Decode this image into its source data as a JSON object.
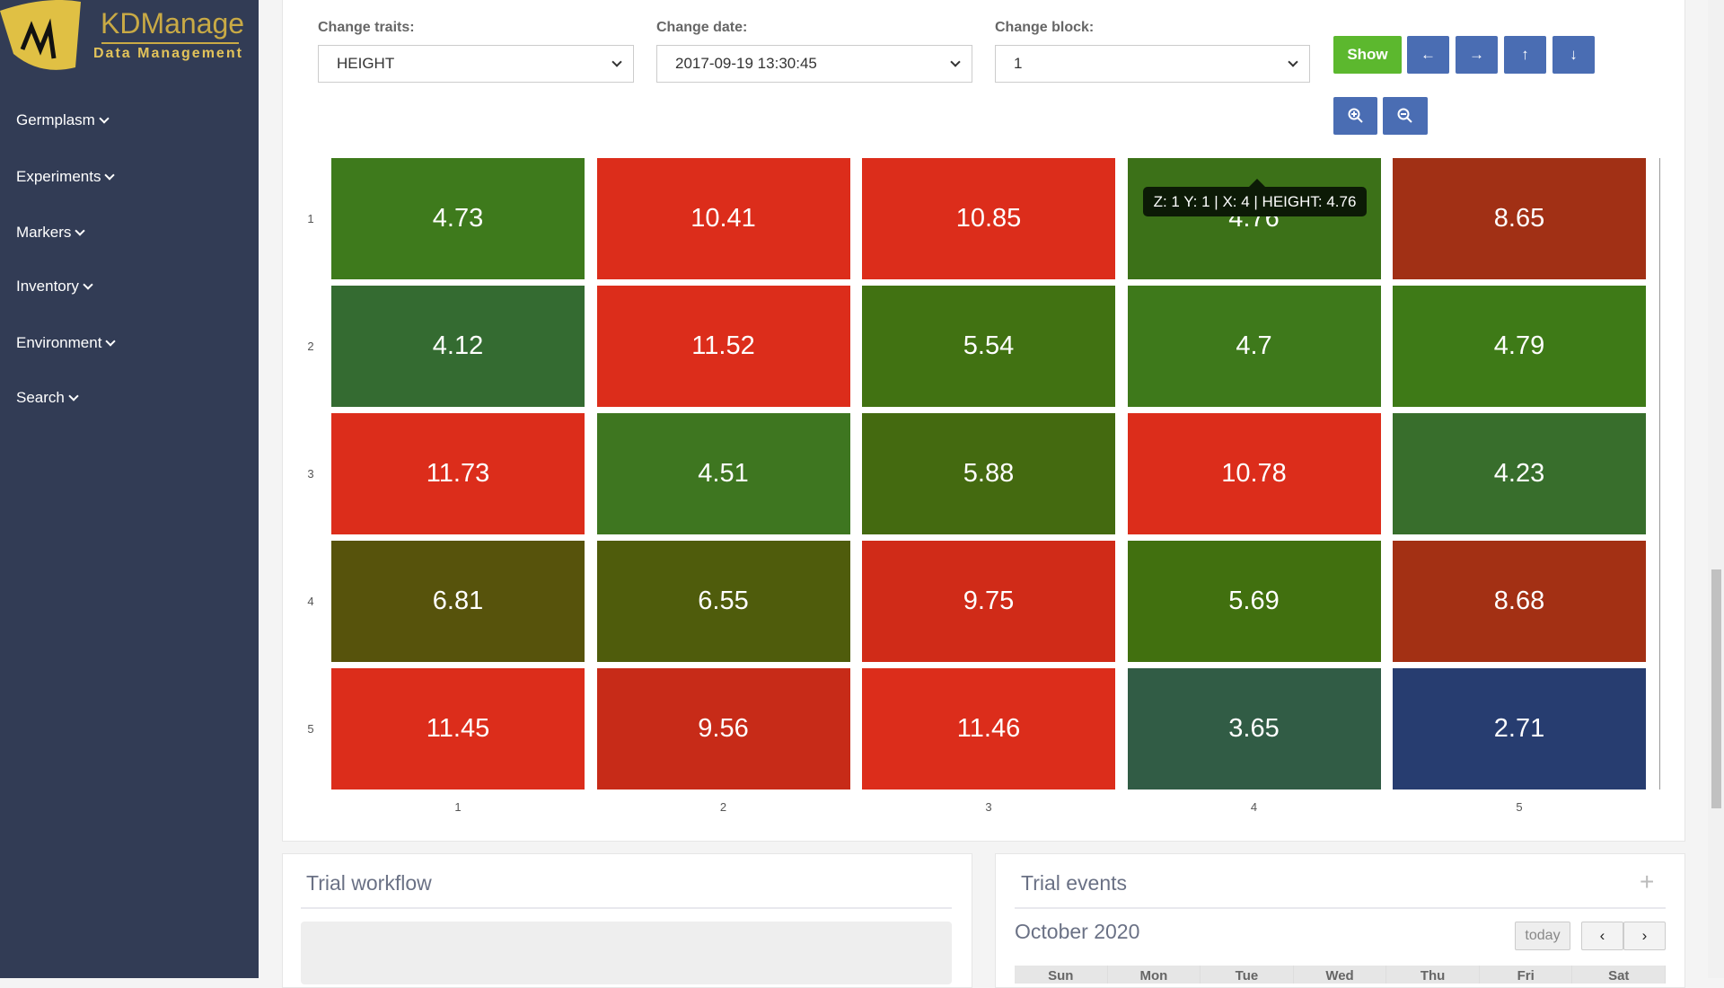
{
  "brand": {
    "name": "KDManage",
    "tagline": "Data Management"
  },
  "sidebar": {
    "items": [
      {
        "label": "Germplasm"
      },
      {
        "label": "Experiments"
      },
      {
        "label": "Markers"
      },
      {
        "label": "Inventory"
      },
      {
        "label": "Environment"
      },
      {
        "label": "Search"
      }
    ]
  },
  "controls": {
    "trait_label": "Change traits:",
    "trait_value": "HEIGHT",
    "date_label": "Change date:",
    "date_value": "2017-09-19 13:30:45",
    "block_label": "Change block:",
    "block_value": "1",
    "show_label": "Show",
    "colors": {
      "show": "#5cb82e",
      "nav": "#4a6db3"
    }
  },
  "tooltip": "Z: 1 Y: 1 | X: 4 | HEIGHT: 4.76",
  "chart_data": {
    "type": "heatmap",
    "x_labels": [
      "1",
      "2",
      "3",
      "4",
      "5"
    ],
    "y_labels": [
      "1",
      "2",
      "3",
      "4",
      "5"
    ],
    "values": [
      [
        4.73,
        10.41,
        10.85,
        4.76,
        8.65
      ],
      [
        4.12,
        11.52,
        5.54,
        4.7,
        4.79
      ],
      [
        11.73,
        4.51,
        5.88,
        10.78,
        4.23
      ],
      [
        6.81,
        6.55,
        9.75,
        5.69,
        8.68
      ],
      [
        11.45,
        9.56,
        11.46,
        3.65,
        2.71
      ]
    ],
    "colors": [
      [
        "#3e7a1c",
        "#dc2d1b",
        "#dc2d1b",
        "#3c7118",
        "#a13015"
      ],
      [
        "#346b31",
        "#dc2d1b",
        "#417212",
        "#3e791b",
        "#3e7a17"
      ],
      [
        "#dc2d1b",
        "#3e7620",
        "#446a10",
        "#dc2d1b",
        "#386e2c"
      ],
      [
        "#57530c",
        "#4f5c0c",
        "#d02b18",
        "#41700f",
        "#a33014"
      ],
      [
        "#dc2d1b",
        "#c72b18",
        "#dc2d1b",
        "#315c45",
        "#273d70"
      ]
    ]
  },
  "workflow": {
    "title": "Trial workflow"
  },
  "events": {
    "title": "Trial events",
    "month": "October 2020",
    "today": "today",
    "days": [
      "Sun",
      "Mon",
      "Tue",
      "Wed",
      "Thu",
      "Fri",
      "Sat"
    ]
  }
}
